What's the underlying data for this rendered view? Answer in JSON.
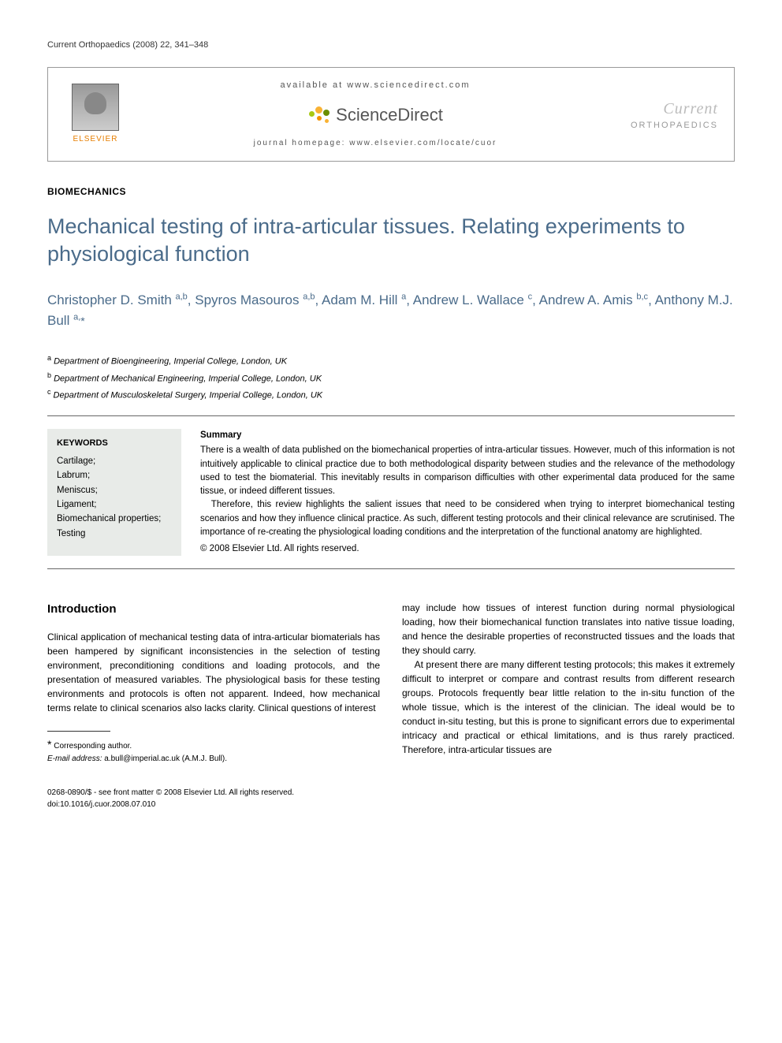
{
  "running_header": "Current Orthopaedics (2008) 22, 341–348",
  "header": {
    "elsevier": "ELSEVIER",
    "available": "available at www.sciencedirect.com",
    "sciencedirect": "ScienceDirect",
    "homepage": "journal homepage: www.elsevier.com/locate/cuor",
    "journal_top": "Current",
    "journal_bottom": "ORTHOPAEDICS",
    "sd_dot_colors": {
      "orange1": "#f9b233",
      "orange2": "#f39200",
      "green1": "#a8c813",
      "green2": "#6b8e00"
    }
  },
  "section_label": "BIOMECHANICS",
  "title": "Mechanical testing of intra-articular tissues. Relating experiments to physiological function",
  "authors_html": "Christopher D. Smith <sup>a,b</sup>, Spyros Masouros <sup>a,b</sup>, Adam M. Hill <sup>a</sup>, Andrew L. Wallace <sup>c</sup>, Andrew A. Amis <sup>b,c</sup>, Anthony M.J. Bull <sup>a,</sup><span class='star'>*</span>",
  "affiliations": [
    {
      "sup": "a",
      "text": "Department of Bioengineering, Imperial College, London, UK"
    },
    {
      "sup": "b",
      "text": "Department of Mechanical Engineering, Imperial College, London, UK"
    },
    {
      "sup": "c",
      "text": "Department of Musculoskeletal Surgery, Imperial College, London, UK"
    }
  ],
  "keywords": {
    "title": "KEYWORDS",
    "items": [
      "Cartilage;",
      "Labrum;",
      "Meniscus;",
      "Ligament;",
      "Biomechanical properties;",
      "Testing"
    ]
  },
  "summary": {
    "title": "Summary",
    "p1": "There is a wealth of data published on the biomechanical properties of intra-articular tissues. However, much of this information is not intuitively applicable to clinical practice due to both methodological disparity between studies and the relevance of the methodology used to test the biomaterial. This inevitably results in comparison difficulties with other experimental data produced for the same tissue, or indeed different tissues.",
    "p2": "Therefore, this review highlights the salient issues that need to be considered when trying to interpret biomechanical testing scenarios and how they influence clinical practice. As such, different testing protocols and their clinical relevance are scrutinised. The importance of re-creating the physiological loading conditions and the interpretation of the functional anatomy are highlighted.",
    "copyright": "© 2008 Elsevier Ltd. All rights reserved."
  },
  "introduction": {
    "heading": "Introduction",
    "left_p1": "Clinical application of mechanical testing data of intra-articular biomaterials has been hampered by significant inconsistencies in the selection of testing environment, preconditioning conditions and loading protocols, and the presentation of measured variables. The physiological basis for these testing environments and protocols is often not apparent. Indeed, how mechanical terms relate to clinical scenarios also lacks clarity. Clinical questions of interest",
    "right_p1": "may include how tissues of interest function during normal physiological loading, how their biomechanical function translates into native tissue loading, and hence the desirable properties of reconstructed tissues and the loads that they should carry.",
    "right_p2": "At present there are many different testing protocols; this makes it extremely difficult to interpret or compare and contrast results from different research groups. Protocols frequently bear little relation to the in-situ function of the whole tissue, which is the interest of the clinician. The ideal would be to conduct in-situ testing, but this is prone to significant errors due to experimental intricacy and practical or ethical limitations, and is thus rarely practiced. Therefore, intra-articular tissues are"
  },
  "footnote": {
    "corresponding": "Corresponding author.",
    "email_label": "E-mail address:",
    "email": "a.bull@imperial.ac.uk",
    "email_person": "(A.M.J. Bull)."
  },
  "footer": {
    "line1": "0268-0890/$ - see front matter © 2008 Elsevier Ltd. All rights reserved.",
    "line2": "doi:10.1016/j.cuor.2008.07.010"
  },
  "colors": {
    "title_blue": "#4a6b8a",
    "keywords_bg": "#e8ebe8",
    "elsevier_orange": "#e67e00",
    "journal_grey": "#bbb"
  }
}
